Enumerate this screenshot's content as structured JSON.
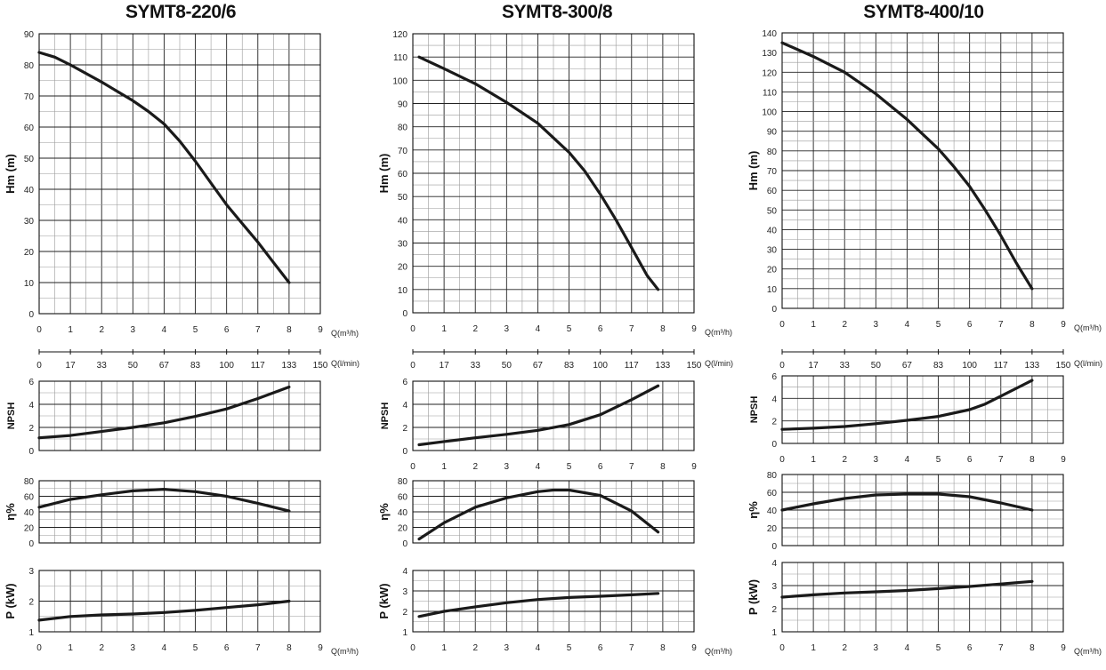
{
  "chart_data": [
    {
      "title": "SYMT8-220/6",
      "q_unit_m3h": "Q(m³/h)",
      "q_unit_lmin": "Q(l/min)",
      "lmin_ticks": [
        "0",
        "17",
        "33",
        "50",
        "67",
        "83",
        "100",
        "117",
        "133",
        "150"
      ],
      "panels": [
        {
          "type": "line",
          "ylabel": "Hm   (m)",
          "xlim": [
            0,
            9
          ],
          "ylim": [
            0,
            90
          ],
          "y_ticks": [
            0,
            10,
            20,
            30,
            40,
            50,
            60,
            70,
            80,
            90
          ],
          "series": [
            {
              "x": [
                0,
                0.5,
                1,
                2,
                3,
                3.5,
                4,
                4.5,
                5,
                5.5,
                6,
                6.5,
                7,
                7.5,
                8
              ],
              "y": [
                84,
                82.5,
                80,
                74.5,
                68.5,
                65,
                61,
                55.5,
                49,
                42,
                35,
                29,
                23,
                16.5,
                10
              ]
            }
          ]
        },
        {
          "type": "line",
          "ylabel": "NPSH",
          "xlim": [
            0,
            9
          ],
          "ylim": [
            0,
            6
          ],
          "y_ticks": [
            0,
            2,
            4,
            6
          ],
          "series": [
            {
              "x": [
                0,
                1,
                2,
                3,
                4,
                5,
                6,
                7,
                8
              ],
              "y": [
                1.1,
                1.3,
                1.65,
                2.0,
                2.4,
                2.95,
                3.6,
                4.5,
                5.5
              ]
            }
          ]
        },
        {
          "type": "line",
          "ylabel": "η%",
          "xlim": [
            0,
            9
          ],
          "ylim": [
            0,
            80
          ],
          "y_ticks": [
            0,
            20,
            40,
            60,
            80
          ],
          "series": [
            {
              "x": [
                0,
                1,
                2,
                3,
                4,
                5,
                6,
                7,
                8
              ],
              "y": [
                46,
                56,
                62,
                67,
                69,
                66,
                60,
                51,
                41
              ]
            }
          ]
        },
        {
          "type": "line",
          "ylabel": "P   (kW)",
          "xlim": [
            0,
            9
          ],
          "ylim": [
            1,
            3
          ],
          "y_ticks": [
            1,
            2,
            3
          ],
          "series": [
            {
              "x": [
                0,
                1,
                2,
                3,
                4,
                5,
                6,
                7,
                8
              ],
              "y": [
                1.38,
                1.5,
                1.55,
                1.58,
                1.63,
                1.7,
                1.79,
                1.88,
                2.0
              ]
            }
          ]
        }
      ],
      "x_ticks": [
        "0",
        "1",
        "2",
        "3",
        "4",
        "5",
        "6",
        "7",
        "8",
        "9"
      ]
    },
    {
      "title": "SYMT8-300/8",
      "q_unit_m3h": "Q(m³/h)",
      "q_unit_lmin": "Q(l/min)",
      "lmin_ticks": [
        "0",
        "17",
        "33",
        "50",
        "67",
        "83",
        "100",
        "117",
        "133",
        "150"
      ],
      "panels": [
        {
          "type": "line",
          "ylabel": "Hm   (m)",
          "xlim": [
            0,
            9
          ],
          "ylim": [
            0,
            120
          ],
          "y_ticks": [
            0,
            10,
            20,
            30,
            40,
            50,
            60,
            70,
            80,
            90,
            100,
            110,
            120
          ],
          "series": [
            {
              "x": [
                0.2,
                1,
                2,
                3,
                4,
                5,
                5.5,
                6,
                6.5,
                7,
                7.5,
                7.85
              ],
              "y": [
                110,
                105,
                98.5,
                90.5,
                81.5,
                69,
                61,
                51,
                40,
                28,
                16,
                10
              ]
            }
          ]
        },
        {
          "type": "line",
          "ylabel": "NPSH",
          "xlim": [
            0,
            9
          ],
          "ylim": [
            0,
            6
          ],
          "y_ticks": [
            0,
            2,
            4,
            6
          ],
          "series": [
            {
              "x": [
                0.2,
                1,
                2,
                3,
                4,
                5,
                6,
                7,
                7.85
              ],
              "y": [
                0.5,
                0.78,
                1.1,
                1.4,
                1.75,
                2.25,
                3.1,
                4.4,
                5.6
              ]
            }
          ]
        },
        {
          "type": "line",
          "ylabel": "η%",
          "xlim": [
            0,
            9
          ],
          "ylim": [
            0,
            80
          ],
          "y_ticks": [
            0,
            20,
            40,
            60,
            80
          ],
          "series": [
            {
              "x": [
                0.2,
                1,
                2,
                3,
                4,
                4.5,
                5,
                6,
                7,
                7.85
              ],
              "y": [
                5,
                26,
                46,
                58,
                66,
                68,
                68,
                61,
                41,
                14
              ]
            }
          ]
        },
        {
          "type": "line",
          "ylabel": "P   (kW)",
          "xlim": [
            0,
            9
          ],
          "ylim": [
            1,
            4
          ],
          "y_ticks": [
            1,
            2,
            3,
            4
          ],
          "series": [
            {
              "x": [
                0.2,
                1,
                2,
                3,
                4,
                5,
                6,
                7,
                7.85
              ],
              "y": [
                1.75,
                2.0,
                2.22,
                2.42,
                2.58,
                2.68,
                2.74,
                2.81,
                2.88
              ]
            }
          ]
        }
      ],
      "x_ticks": [
        "0",
        "1",
        "2",
        "3",
        "4",
        "5",
        "6",
        "7",
        "8",
        "9"
      ]
    },
    {
      "title": "SYMT8-400/10",
      "q_unit_m3h": "Q(m³/h)",
      "q_unit_lmin": "Q(l/min)",
      "lmin_ticks": [
        "0",
        "17",
        "33",
        "50",
        "67",
        "83",
        "100",
        "117",
        "133",
        "150"
      ],
      "panels": [
        {
          "type": "line",
          "ylabel": "Hm   (m)",
          "xlim": [
            0,
            9
          ],
          "ylim": [
            0,
            140
          ],
          "y_ticks": [
            0,
            10,
            20,
            30,
            40,
            50,
            60,
            70,
            80,
            90,
            100,
            110,
            120,
            130,
            140
          ],
          "series": [
            {
              "x": [
                0,
                1,
                2,
                3,
                4,
                5,
                5.5,
                6,
                6.5,
                7,
                7.5,
                8
              ],
              "y": [
                135,
                128,
                120,
                109,
                96,
                81,
                72,
                62,
                50,
                37,
                23,
                10
              ]
            }
          ]
        },
        {
          "type": "line",
          "ylabel": "NPSH",
          "xlim": [
            0,
            9
          ],
          "ylim": [
            0,
            6
          ],
          "y_ticks": [
            0,
            2,
            4,
            6
          ],
          "series": [
            {
              "x": [
                0,
                1,
                2,
                3,
                4,
                5,
                6,
                6.5,
                7,
                8
              ],
              "y": [
                1.25,
                1.35,
                1.5,
                1.75,
                2.05,
                2.4,
                3.0,
                3.5,
                4.2,
                5.6
              ]
            }
          ]
        },
        {
          "type": "line",
          "ylabel": "η%",
          "xlim": [
            0,
            9
          ],
          "ylim": [
            0,
            80
          ],
          "y_ticks": [
            0,
            20,
            40,
            60,
            80
          ],
          "series": [
            {
              "x": [
                0,
                1,
                2,
                3,
                4,
                5,
                6,
                7,
                8
              ],
              "y": [
                40,
                47,
                53,
                57,
                58,
                58,
                55,
                48,
                40
              ]
            }
          ]
        },
        {
          "type": "line",
          "ylabel": "P   (kW)",
          "xlim": [
            0,
            9
          ],
          "ylim": [
            1,
            4
          ],
          "y_ticks": [
            1,
            2,
            3,
            4
          ],
          "series": [
            {
              "x": [
                0,
                1,
                2,
                3,
                4,
                5,
                6,
                7,
                8
              ],
              "y": [
                2.5,
                2.6,
                2.68,
                2.73,
                2.79,
                2.87,
                2.96,
                3.07,
                3.18
              ]
            }
          ]
        }
      ],
      "x_ticks": [
        "0",
        "1",
        "2",
        "3",
        "4",
        "5",
        "6",
        "7",
        "8",
        "9"
      ]
    }
  ]
}
